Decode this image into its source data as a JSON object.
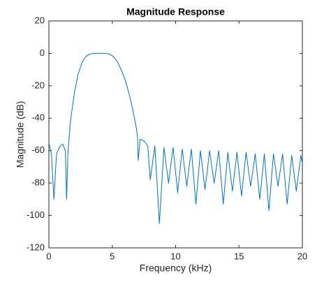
{
  "chart_data": {
    "type": "line",
    "title": "Magnitude Response",
    "x_label": "Frequency (kHz)",
    "y_label": "Magnitude (dB)",
    "x": [
      0,
      0.2,
      0.4,
      0.6,
      0.9,
      1.1,
      1.3,
      1.4,
      1.5,
      1.7,
      2.0,
      2.3,
      2.6,
      2.9,
      3.2,
      3.5,
      4.0,
      4.5,
      4.8,
      5.1,
      5.4,
      5.7,
      6.0,
      6.3,
      6.6,
      6.9,
      7.0,
      7.05,
      7.2,
      7.5,
      7.8,
      8.0,
      8.36,
      8.72,
      9.08,
      9.44,
      9.8,
      10.16,
      10.52,
      10.88,
      11.24,
      11.6,
      11.96,
      12.32,
      12.68,
      13.04,
      13.4,
      13.76,
      14.12,
      14.48,
      14.84,
      15.2,
      15.56,
      15.92,
      16.28,
      16.64,
      17.0,
      17.36,
      17.72,
      18.08,
      18.44,
      18.8,
      19.16,
      19.52,
      19.88,
      20
    ],
    "series": [
      {
        "name": "Magnitude",
        "color": "#0072BD",
        "values": [
          -55,
          -62,
          -90,
          -62,
          -57,
          -56,
          -60,
          -90,
          -62,
          -42,
          -25,
          -13,
          -6,
          -2,
          -0.5,
          0,
          0,
          0,
          -0.5,
          -2,
          -5,
          -10,
          -16,
          -24,
          -34,
          -46,
          -52,
          -66,
          -53,
          -54,
          -57,
          -78,
          -57,
          -105,
          -58,
          -80,
          -58,
          -86,
          -59,
          -82,
          -59,
          -93,
          -60,
          -84,
          -60,
          -80,
          -60,
          -93,
          -61,
          -85,
          -61,
          -88,
          -61,
          -82,
          -62,
          -90,
          -62,
          -97,
          -62,
          -82,
          -62,
          -93,
          -63,
          -85,
          -63,
          -68
        ]
      }
    ],
    "xlim": [
      0,
      20
    ],
    "xticks": [
      0,
      5,
      10,
      15,
      20
    ],
    "ylim": [
      -120,
      20
    ],
    "yticks": [
      -120,
      -100,
      -80,
      -60,
      -40,
      -20,
      0,
      20
    ]
  }
}
